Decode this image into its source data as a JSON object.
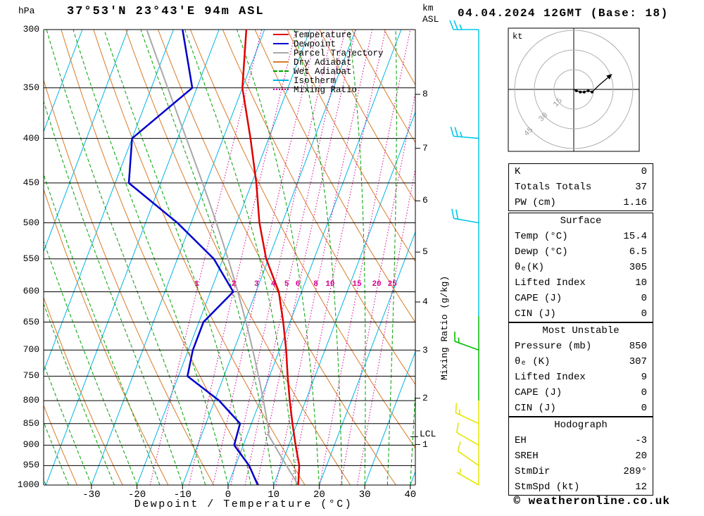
{
  "header": {
    "pressure_unit": "hPa",
    "station": "37°53'N 23°43'E 94m ASL",
    "datetime": "04.04.2024 12GMT (Base: 18)",
    "km_label": "km",
    "asl_label": "ASL"
  },
  "legend": {
    "items": [
      {
        "label": "Temperature",
        "color": "#e00000",
        "dash": "solid"
      },
      {
        "label": "Dewpoint",
        "color": "#0000cd",
        "dash": "solid"
      },
      {
        "label": "Parcel Trajectory",
        "color": "#a8a8a8",
        "dash": "solid"
      },
      {
        "label": "Dry Adiabat",
        "color": "#d97b28",
        "dash": "solid"
      },
      {
        "label": "Wet Adiabat",
        "color": "#00a000",
        "dash": "dashed"
      },
      {
        "label": "Isotherm",
        "color": "#00b4e4",
        "dash": "solid"
      },
      {
        "label": "Mixing Ratio",
        "color": "#d40090",
        "dash": "dotted"
      }
    ]
  },
  "axes": {
    "pressure_ticks": [
      300,
      350,
      400,
      450,
      500,
      550,
      600,
      650,
      700,
      750,
      800,
      850,
      900,
      950,
      1000
    ],
    "temp_ticks_c": [
      -30,
      -20,
      -10,
      0,
      10,
      20,
      30,
      40
    ],
    "x_axis_label": "Dewpoint / Temperature (°C)",
    "km_ticks": [
      1,
      2,
      3,
      4,
      5,
      6,
      7,
      8
    ],
    "mixing_ratio_axis_label": "Mixing Ratio (g/kg)",
    "lcl_label": "LCL",
    "lcl_pressure_hpa": 880
  },
  "chart_data": {
    "type": "line",
    "subtype": "skewt_log_p_sounding",
    "title": "37°53'N 23°43'E 94m ASL  04.04.2024 12GMT (Base: 18)",
    "pressure_axis_range_hpa": [
      300,
      1000
    ],
    "temp_axis_range_c": [
      -40,
      40
    ],
    "pressure_levels_hpa": [
      1000,
      950,
      900,
      850,
      800,
      750,
      700,
      650,
      600,
      550,
      500,
      450,
      400,
      350,
      300
    ],
    "series": [
      {
        "name": "Temperature",
        "color": "#e00000",
        "values_c": [
          15.4,
          14,
          11.5,
          9,
          6.5,
          4,
          1.5,
          -1.5,
          -5,
          -10.5,
          -15,
          -19,
          -24,
          -30,
          -34
        ]
      },
      {
        "name": "Dewpoint",
        "color": "#0000cd",
        "values_c": [
          6.5,
          3,
          -2,
          -2.5,
          -9,
          -18,
          -19,
          -19,
          -15,
          -22,
          -33,
          -47,
          -50,
          -41,
          -48
        ]
      }
    ],
    "parcel_trajectory": {
      "surface_temp_c": 15.4,
      "surface_dewp_c": 6.5,
      "color": "#a8a8a8"
    },
    "background": {
      "isotherms": {
        "color": "#00b4e4",
        "start_c": -120,
        "end_c": 40,
        "step_c": 10
      },
      "dry_adiabats": {
        "color": "#d97b28",
        "start_k": 240,
        "end_k": 440,
        "step_k": 10
      },
      "wet_adiabats": {
        "color": "#00a000",
        "start_c": -60,
        "end_c": 40,
        "step_c": 5
      },
      "mixing_ratio_lines": {
        "color": "#d40090",
        "values_g_kg": [
          1,
          2,
          3,
          4,
          5,
          6,
          8,
          10,
          15,
          20,
          25
        ]
      }
    },
    "wind_staff_segments": [
      {
        "from_p": 300,
        "to_p": 640,
        "color": "#00c8e8"
      },
      {
        "from_p": 640,
        "to_p": 800,
        "color": "#00bb00"
      },
      {
        "from_p": 800,
        "to_p": 1000,
        "color": "#e6e600"
      }
    ],
    "wind_barbs": [
      {
        "pressure_hpa": 300,
        "speed_kt": 25,
        "dir_deg": 270,
        "color": "#00c8e8"
      },
      {
        "pressure_hpa": 400,
        "speed_kt": 25,
        "dir_deg": 275,
        "color": "#00c8e8"
      },
      {
        "pressure_hpa": 500,
        "speed_kt": 20,
        "dir_deg": 280,
        "color": "#00c8e8"
      },
      {
        "pressure_hpa": 700,
        "speed_kt": 15,
        "dir_deg": 290,
        "color": "#00bb00"
      },
      {
        "pressure_hpa": 850,
        "speed_kt": 15,
        "dir_deg": 295,
        "color": "#e6e600"
      },
      {
        "pressure_hpa": 900,
        "speed_kt": 10,
        "dir_deg": 300,
        "color": "#e6e600"
      },
      {
        "pressure_hpa": 950,
        "speed_kt": 10,
        "dir_deg": 305,
        "color": "#e6e600"
      },
      {
        "pressure_hpa": 1000,
        "speed_kt": 5,
        "dir_deg": 300,
        "color": "#e6e600"
      }
    ],
    "hodograph": {
      "unit_label": "kt",
      "ring_radii_kt": [
        15,
        30,
        45
      ],
      "trace_uv_kt": [
        [
          0,
          0
        ],
        [
          2,
          -1
        ],
        [
          5,
          -2
        ],
        [
          8,
          -2
        ],
        [
          11,
          -1
        ],
        [
          14,
          -2
        ],
        [
          19,
          3
        ],
        [
          26,
          9
        ]
      ],
      "dot_indices": [
        1,
        2,
        3,
        4,
        5
      ],
      "storm_dir_deg": 289,
      "storm_speed_kt": 12
    }
  },
  "tables": {
    "indices": {
      "rows": [
        [
          "K",
          "0"
        ],
        [
          "Totals Totals",
          "37"
        ],
        [
          "PW (cm)",
          "1.16"
        ]
      ]
    },
    "surface": {
      "title": "Surface",
      "rows": [
        [
          "Temp (°C)",
          "15.4"
        ],
        [
          "Dewp (°C)",
          "6.5"
        ],
        [
          "θₑ(K)",
          "305"
        ],
        [
          "Lifted Index",
          "10"
        ],
        [
          "CAPE (J)",
          "0"
        ],
        [
          "CIN (J)",
          "0"
        ]
      ]
    },
    "most_unstable": {
      "title": "Most Unstable",
      "rows": [
        [
          "Pressure (mb)",
          "850"
        ],
        [
          "θₑ (K)",
          "307"
        ],
        [
          "Lifted Index",
          "9"
        ],
        [
          "CAPE (J)",
          "0"
        ],
        [
          "CIN (J)",
          "0"
        ]
      ]
    },
    "hodograph": {
      "title": "Hodograph",
      "rows": [
        [
          "EH",
          "-3"
        ],
        [
          "SREH",
          "20"
        ],
        [
          "StmDir",
          "289°"
        ],
        [
          "StmSpd (kt)",
          "12"
        ]
      ]
    }
  },
  "footer": {
    "copyright": "© weatheronline.co.uk"
  }
}
